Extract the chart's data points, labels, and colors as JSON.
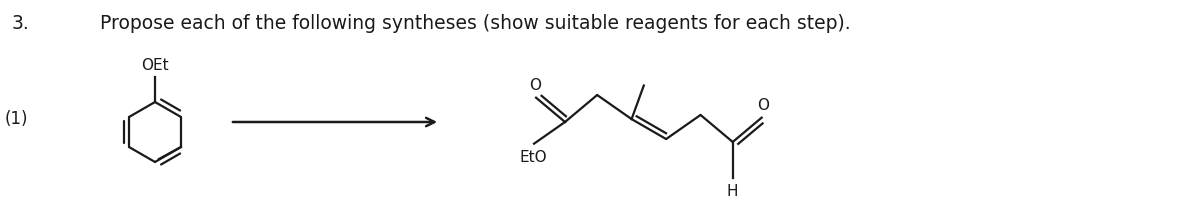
{
  "title_number": "3.",
  "title_text": "Propose each of the following syntheses (show suitable reagents for each step).",
  "label_1": "(1)",
  "reagent_label_top": "OEt",
  "product_label_bottom_left": "EtO",
  "product_label_bottom_right": "H",
  "bg_color": "#ffffff",
  "line_color": "#1a1a1a",
  "font_size_title": 13.5,
  "font_size_labels": 12,
  "fig_width": 12.0,
  "fig_height": 2.24,
  "dpi": 100
}
